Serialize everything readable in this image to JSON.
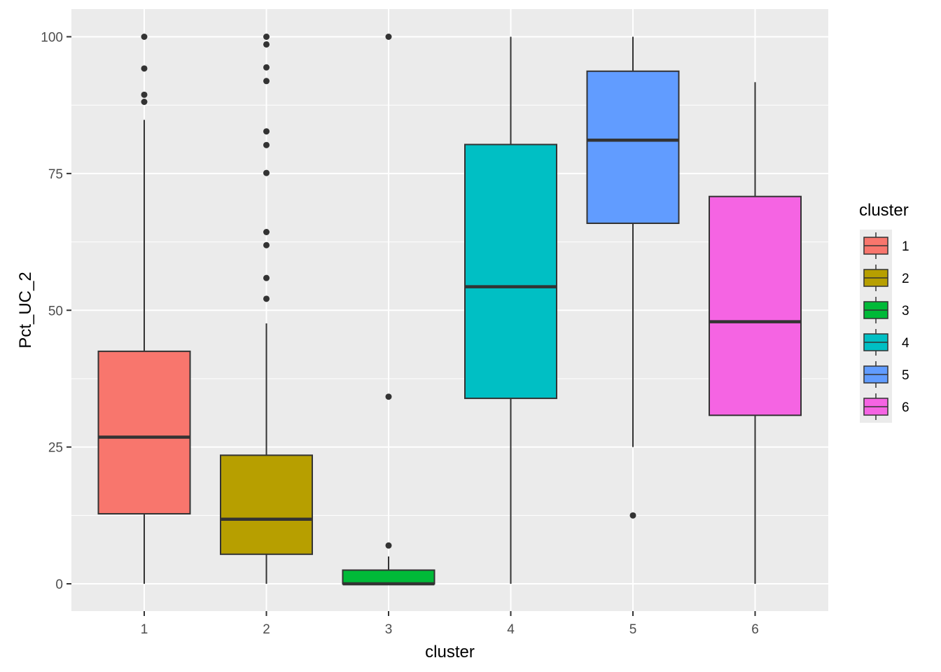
{
  "chart_data": {
    "type": "boxplot",
    "title": "",
    "xlabel": "cluster",
    "ylabel": "Pct_UC_2",
    "ylim": [
      -5,
      105
    ],
    "yticks": [
      0,
      25,
      50,
      75,
      100
    ],
    "grid": true,
    "legend": {
      "title": "cluster",
      "placement": "right"
    },
    "categories": [
      "1",
      "2",
      "3",
      "4",
      "5",
      "6"
    ],
    "series": [
      {
        "name": "1",
        "color": "#F8766D",
        "min": 0,
        "q1": 12.8,
        "median": 26.8,
        "q3": 42.5,
        "max": 84.8,
        "outliers": [
          88.1,
          89.4,
          94.2,
          100
        ]
      },
      {
        "name": "2",
        "color": "#B79F00",
        "min": 0,
        "q1": 5.4,
        "median": 11.8,
        "q3": 23.5,
        "max": 47.6,
        "outliers": [
          52.1,
          55.9,
          61.9,
          64.3,
          75.1,
          80.2,
          82.7,
          91.9,
          94.4,
          98.6,
          100
        ]
      },
      {
        "name": "3",
        "color": "#00BA38",
        "min": 0,
        "q1": 0,
        "median": 0,
        "q3": 2.5,
        "max": 5.0,
        "outliers": [
          7.0,
          34.2,
          100
        ]
      },
      {
        "name": "4",
        "color": "#00BFC4",
        "min": 0,
        "q1": 33.9,
        "median": 54.3,
        "q3": 80.3,
        "max": 100,
        "outliers": []
      },
      {
        "name": "5",
        "color": "#619CFF",
        "min": 25.0,
        "q1": 65.9,
        "median": 81.1,
        "q3": 93.7,
        "max": 100,
        "outliers": [
          12.5
        ]
      },
      {
        "name": "6",
        "color": "#F564E3",
        "min": 0,
        "q1": 30.8,
        "median": 47.9,
        "q3": 70.8,
        "max": 91.7,
        "outliers": []
      }
    ]
  }
}
